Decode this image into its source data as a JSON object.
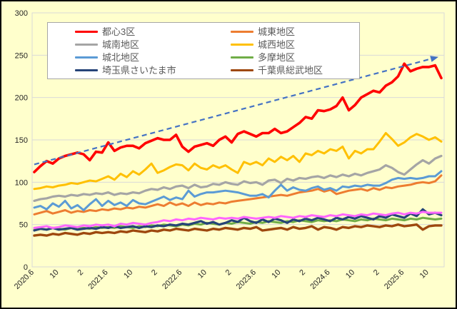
{
  "frame": {
    "background_color": "#FFFFCC",
    "border_color": "#000000",
    "plot_background_color": "#FFFFCC",
    "gridline_color": "#D9D9D9"
  },
  "legend": {
    "background": "#FFFFFF",
    "border_color": "#A6A6A6",
    "text_color": "#595959",
    "items": [
      {
        "key": "toshin3ku",
        "label": "都心3区",
        "color": "#FF0000"
      },
      {
        "key": "joto",
        "label": "城東地区",
        "color": "#ED7D31"
      },
      {
        "key": "jonan",
        "label": "城南地区",
        "color": "#A5A5A5"
      },
      {
        "key": "josai",
        "label": "城西地区",
        "color": "#FFC000"
      },
      {
        "key": "johoku",
        "label": "城北地区",
        "color": "#5B9BD5"
      },
      {
        "key": "tama",
        "label": "多摩地区",
        "color": "#70AD47"
      },
      {
        "key": "saitamashi",
        "label": "埼玉県さいたま市",
        "color": "#264478"
      },
      {
        "key": "chibasobu",
        "label": "千葉県総武地区",
        "color": "#9E480E"
      }
    ]
  },
  "chart_data": {
    "type": "line",
    "title": "",
    "xlabel": "",
    "ylabel": "",
    "ylim": [
      0,
      300
    ],
    "y_ticks": [
      0,
      50,
      100,
      150,
      200,
      250,
      300
    ],
    "grid": true,
    "legend_position": "top-left",
    "n_points": 67,
    "x_start_label": "2020.6",
    "x_tick_every": 4,
    "x_tick_labels": [
      "2020.6",
      "10",
      "2",
      "2021.6",
      "10",
      "2",
      "2022.6",
      "10",
      "2",
      "2023.6",
      "10",
      "2",
      "2024.6",
      "10",
      "2",
      "2025.6",
      "10"
    ],
    "series": [
      {
        "key": "josai",
        "name": "城西地区",
        "color": "#FFC000",
        "width": 3,
        "values": [
          92,
          93,
          95,
          94,
          96,
          97,
          99,
          98,
          100,
          102,
          101,
          104,
          107,
          103,
          110,
          106,
          113,
          109,
          115,
          122,
          111,
          114,
          118,
          121,
          120,
          114,
          122,
          117,
          115,
          120,
          117,
          120,
          115,
          111,
          124,
          121,
          124,
          120,
          128,
          124,
          130,
          126,
          131,
          124,
          134,
          132,
          137,
          134,
          139,
          137,
          142,
          128,
          137,
          134,
          139,
          139,
          148,
          158,
          151,
          143,
          147,
          153,
          157,
          154,
          150,
          153,
          148
        ]
      },
      {
        "key": "jonan",
        "name": "城南地区",
        "color": "#A5A5A5",
        "width": 3.2,
        "values": [
          78,
          80,
          81,
          83,
          84,
          83,
          85,
          84,
          86,
          85,
          87,
          86,
          88,
          85,
          87,
          86,
          88,
          87,
          90,
          92,
          91,
          94,
          92,
          95,
          96,
          93,
          97,
          94,
          95,
          98,
          97,
          100,
          98,
          97,
          101,
          99,
          100,
          97,
          102,
          103,
          99,
          104,
          102,
          105,
          104,
          106,
          107,
          105,
          108,
          106,
          109,
          107,
          110,
          108,
          111,
          113,
          115,
          120,
          117,
          112,
          109,
          115,
          121,
          126,
          122,
          128,
          131
        ]
      },
      {
        "key": "joto",
        "name": "城東地区",
        "color": "#ED7D31",
        "width": 3,
        "values": [
          62,
          64,
          66,
          63,
          65,
          67,
          64,
          66,
          65,
          67,
          66,
          68,
          67,
          69,
          68,
          70,
          69,
          71,
          70,
          72,
          74,
          72,
          76,
          73,
          75,
          72,
          76,
          73,
          75,
          74,
          76,
          75,
          77,
          78,
          79,
          80,
          81,
          82,
          83,
          84,
          85,
          84,
          86,
          88,
          89,
          90,
          92,
          89,
          91,
          86,
          88,
          90,
          91,
          92,
          90,
          93,
          91,
          94,
          93,
          95,
          96,
          97,
          99,
          100,
          99,
          101,
          108
        ]
      },
      {
        "key": "johoku",
        "name": "城北地区",
        "color": "#5B9BD5",
        "width": 3,
        "values": [
          70,
          72,
          68,
          75,
          71,
          78,
          69,
          73,
          67,
          74,
          80,
          72,
          78,
          73,
          76,
          72,
          79,
          75,
          74,
          77,
          80,
          83,
          79,
          82,
          80,
          90,
          83,
          86,
          88,
          88,
          89,
          90,
          89,
          88,
          86,
          84,
          84,
          86,
          82,
          90,
          97,
          90,
          94,
          91,
          90,
          93,
          95,
          91,
          93,
          90,
          95,
          94,
          96,
          95,
          97,
          96,
          96,
          99,
          103,
          105,
          104,
          105,
          104,
          105,
          107,
          107,
          113
        ]
      },
      {
        "key": "tama",
        "name": "多摩地区",
        "color": "#70AD47",
        "width": 3,
        "values": [
          44,
          45,
          44,
          46,
          45,
          44,
          46,
          45,
          46,
          45,
          47,
          46,
          47,
          46,
          48,
          47,
          46,
          48,
          47,
          49,
          48,
          50,
          49,
          48,
          50,
          49,
          51,
          50,
          52,
          51,
          50,
          52,
          51,
          53,
          52,
          51,
          53,
          52,
          54,
          53,
          52,
          54,
          53,
          55,
          54,
          53,
          55,
          54,
          55,
          54,
          56,
          55,
          54,
          56,
          55,
          57,
          56,
          55,
          57,
          56,
          55,
          57,
          56,
          58,
          57,
          56,
          57
        ]
      },
      {
        "key": "saitamashi",
        "name": "埼玉県さいたま市",
        "color": "#264478",
        "width": 3.2,
        "values": [
          43,
          45,
          44,
          46,
          44,
          45,
          46,
          44,
          45,
          46,
          45,
          47,
          46,
          48,
          46,
          47,
          48,
          46,
          48,
          47,
          49,
          48,
          50,
          49,
          51,
          50,
          52,
          54,
          51,
          53,
          50,
          52,
          55,
          53,
          58,
          54,
          52,
          56,
          53,
          57,
          55,
          52,
          56,
          54,
          57,
          55,
          58,
          56,
          54,
          58,
          56,
          59,
          57,
          60,
          58,
          56,
          60,
          58,
          62,
          60,
          58,
          63,
          60,
          68,
          62,
          64,
          61
        ]
      },
      {
        "key": "chibasobu",
        "name": "千葉県総武地区",
        "color": "#9E480E",
        "width": 3.4,
        "values": [
          37,
          38,
          37,
          39,
          38,
          40,
          39,
          38,
          40,
          39,
          41,
          40,
          41,
          40,
          42,
          41,
          43,
          42,
          41,
          43,
          42,
          44,
          43,
          45,
          44,
          43,
          45,
          44,
          43,
          45,
          44,
          46,
          45,
          44,
          46,
          45,
          47,
          43,
          44,
          45,
          46,
          44,
          47,
          45,
          46,
          48,
          44,
          47,
          46,
          44,
          47,
          46,
          48,
          47,
          49,
          48,
          47,
          49,
          48,
          50,
          48,
          49,
          50,
          44,
          48,
          49,
          49
        ]
      },
      {
        "key": "pink-unlabeled",
        "name": "",
        "color": "#FF66FF",
        "width": 3,
        "values": [
          46,
          47,
          48,
          46,
          47,
          49,
          48,
          47,
          49,
          48,
          50,
          49,
          50,
          48,
          51,
          50,
          52,
          51,
          50,
          52,
          53,
          55,
          54,
          56,
          55,
          57,
          56,
          58,
          57,
          56,
          58,
          57,
          58,
          57,
          59,
          58,
          57,
          58,
          59,
          58,
          60,
          59,
          58,
          60,
          59,
          61,
          60,
          59,
          61,
          60,
          62,
          61,
          60,
          62,
          61,
          63,
          62,
          61,
          63,
          64,
          62,
          64,
          63,
          65,
          64,
          64,
          64
        ]
      },
      {
        "key": "toshin3ku",
        "name": "都心3区",
        "color": "#FF0000",
        "width": 3.6,
        "values": [
          112,
          119,
          125,
          122,
          128,
          131,
          133,
          135,
          133,
          126,
          136,
          135,
          147,
          137,
          141,
          143,
          143,
          140,
          146,
          149,
          152,
          150,
          150,
          156,
          142,
          136,
          142,
          144,
          146,
          143,
          150,
          154,
          147,
          157,
          160,
          157,
          154,
          158,
          158,
          163,
          158,
          160,
          165,
          170,
          177,
          175,
          185,
          184,
          186,
          190,
          200,
          185,
          191,
          200,
          204,
          208,
          206,
          214,
          218,
          225,
          240,
          231,
          234,
          236,
          236,
          238,
          223
        ]
      }
    ],
    "trend_line": {
      "style": "dashed-arrow",
      "color": "#4472C4",
      "start_value": 121,
      "end_value": 248
    }
  }
}
